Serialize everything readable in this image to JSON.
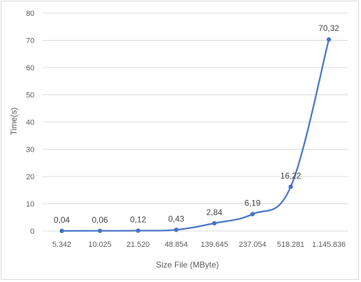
{
  "chart_data": {
    "type": "line",
    "categories": [
      "5.342",
      "10.025",
      "21.520",
      "48.854",
      "139.645",
      "237.054",
      "518.281",
      "1.145.836"
    ],
    "values": [
      0.04,
      0.06,
      0.12,
      0.43,
      2.84,
      6.19,
      16.22,
      70.32
    ],
    "data_labels": [
      "0,04",
      "0,06",
      "0,12",
      "0,43",
      "2,84",
      "6,19",
      "16,22",
      "70,32"
    ],
    "xlabel": "Size File (MByte)",
    "ylabel": "Time(s)",
    "ylim": [
      0,
      80
    ],
    "yticks": [
      0,
      10,
      20,
      30,
      40,
      50,
      60,
      70,
      80
    ],
    "grid": true,
    "series_color": "#4472c4",
    "grid_color": "#d9d9d9"
  }
}
